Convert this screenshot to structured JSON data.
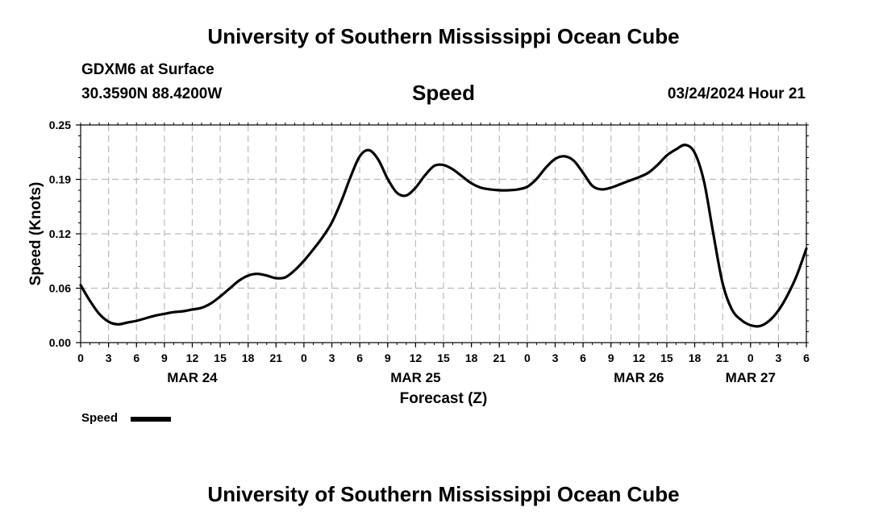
{
  "header": {
    "title": "University of Southern Mississippi Ocean Cube",
    "station": "GDXM6 at Surface",
    "coords": "30.3590N  88.4200W",
    "variable": "Speed",
    "datetime": "03/24/2024 Hour 21"
  },
  "footer": {
    "title": "University of Southern Mississippi Ocean Cube"
  },
  "legend": {
    "label": "Speed",
    "color": "#000000"
  },
  "chart_data": {
    "type": "line",
    "title": "Speed",
    "xlabel": "Forecast (Z)",
    "ylabel": "Speed (Knots)",
    "ylim": [
      0,
      0.25
    ],
    "xlim": [
      0,
      78
    ],
    "grid": true,
    "yticks": [
      0,
      0.0625,
      0.125,
      0.1875,
      0.25
    ],
    "ytick_labels": [
      "0.00",
      "0.06",
      "0.12",
      "0.19",
      "0.25"
    ],
    "xticks": [
      0,
      3,
      6,
      9,
      12,
      15,
      18,
      21,
      24,
      27,
      30,
      33,
      36,
      39,
      42,
      45,
      48,
      51,
      54,
      57,
      60,
      63,
      66,
      69,
      72,
      75,
      78
    ],
    "xtick_labels": [
      "0",
      "3",
      "6",
      "9",
      "12",
      "15",
      "18",
      "21",
      "0",
      "3",
      "6",
      "9",
      "12",
      "15",
      "18",
      "21",
      "0",
      "3",
      "6",
      "9",
      "12",
      "15",
      "18",
      "21",
      "0",
      "3",
      "6"
    ],
    "date_labels": [
      {
        "hour": 12,
        "label": "MAR 24"
      },
      {
        "hour": 36,
        "label": "MAR 25"
      },
      {
        "hour": 60,
        "label": "MAR 26"
      },
      {
        "hour": 72,
        "label": "MAR 27"
      }
    ],
    "series": [
      {
        "name": "Speed",
        "x": [
          0,
          1,
          2,
          3,
          4,
          5,
          6,
          7,
          8,
          9,
          10,
          11,
          12,
          13,
          14,
          15,
          16,
          17,
          18,
          19,
          20,
          21,
          22,
          23,
          24,
          25,
          26,
          27,
          28,
          29,
          30,
          31,
          32,
          33,
          34,
          35,
          36,
          37,
          38,
          39,
          40,
          41,
          42,
          43,
          44,
          45,
          46,
          47,
          48,
          49,
          50,
          51,
          52,
          53,
          54,
          55,
          56,
          57,
          58,
          59,
          60,
          61,
          62,
          63,
          64,
          65,
          66,
          67,
          68,
          69,
          70,
          71,
          72,
          73,
          74,
          75,
          76,
          77,
          78
        ],
        "values": [
          0.066,
          0.048,
          0.033,
          0.024,
          0.021,
          0.023,
          0.025,
          0.028,
          0.031,
          0.033,
          0.035,
          0.036,
          0.038,
          0.04,
          0.045,
          0.053,
          0.062,
          0.071,
          0.077,
          0.079,
          0.077,
          0.074,
          0.075,
          0.083,
          0.094,
          0.107,
          0.121,
          0.138,
          0.162,
          0.19,
          0.214,
          0.221,
          0.21,
          0.188,
          0.172,
          0.169,
          0.178,
          0.192,
          0.203,
          0.204,
          0.199,
          0.191,
          0.183,
          0.178,
          0.176,
          0.175,
          0.175,
          0.176,
          0.179,
          0.188,
          0.201,
          0.211,
          0.214,
          0.209,
          0.195,
          0.18,
          0.176,
          0.178,
          0.182,
          0.186,
          0.19,
          0.195,
          0.204,
          0.215,
          0.222,
          0.227,
          0.218,
          0.185,
          0.125,
          0.068,
          0.038,
          0.026,
          0.02,
          0.019,
          0.025,
          0.037,
          0.055,
          0.078,
          0.108
        ]
      }
    ]
  }
}
